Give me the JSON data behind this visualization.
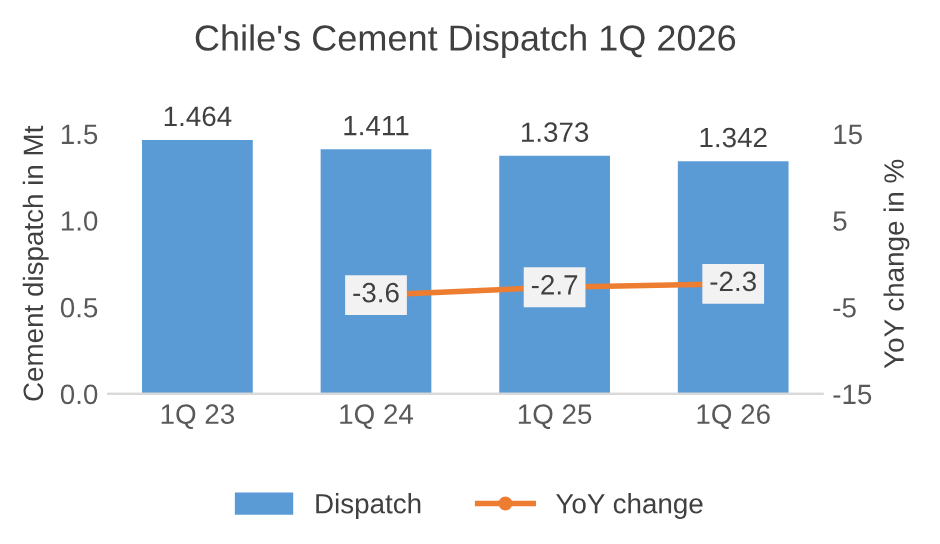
{
  "chart_data": {
    "type": "bar",
    "title": "Chile's Cement Dispatch 1Q 2026",
    "ylabel": "Cement dispatch in Mt",
    "y2label": "YoY change in %",
    "categories": [
      "1Q 23",
      "1Q 24",
      "1Q 25",
      "1Q 26"
    ],
    "series": [
      {
        "name": "Dispatch",
        "color": "#5b9bd5",
        "values": [
          1.464,
          1.411,
          1.373,
          1.342
        ]
      },
      {
        "name": "YoY change",
        "type": "line",
        "axis": "y2",
        "color": "#ed7d31",
        "marker": "circle",
        "values": [
          null,
          -3.6,
          -2.7,
          -2.3
        ]
      }
    ],
    "ylim": [
      0,
      1.5
    ],
    "yticks": [
      {
        "value": 0,
        "label": "0.0"
      },
      {
        "value": 0.5,
        "label": "0.5"
      },
      {
        "value": 1,
        "label": "1.0"
      },
      {
        "value": 1.5,
        "label": "1.5"
      }
    ],
    "y2lim": [
      -15,
      15
    ],
    "y2ticks": [
      -15,
      -5,
      5,
      15
    ],
    "data_labels": true,
    "grid": false,
    "legend": "bottom"
  }
}
